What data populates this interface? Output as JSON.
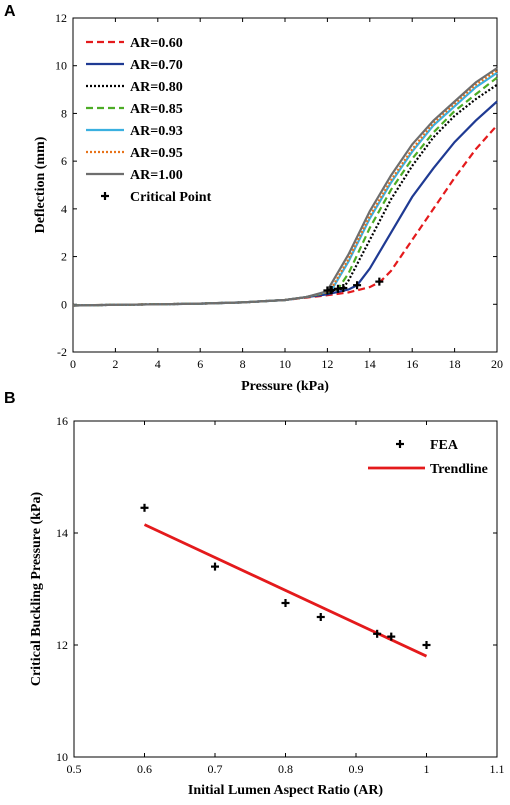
{
  "chart_data": [
    {
      "panel": "A",
      "type": "line",
      "xlabel": "Pressure (kPa)",
      "ylabel": "Deflection (mm)",
      "xlim": [
        0,
        20
      ],
      "ylim": [
        -2,
        12
      ],
      "xticks": [
        0,
        2,
        4,
        6,
        8,
        10,
        12,
        14,
        16,
        18,
        20
      ],
      "yticks": [
        -2,
        0,
        2,
        4,
        6,
        8,
        10,
        12
      ],
      "legend_position": "top-left",
      "series": [
        {
          "name": "AR=0.60",
          "color": "#e41a1c",
          "dash": "dashed",
          "x": [
            0,
            2,
            4,
            6,
            8,
            10,
            11,
            12,
            13,
            14,
            14.5,
            15,
            16,
            17,
            18,
            19,
            20
          ],
          "y": [
            -0.05,
            -0.02,
            0.0,
            0.03,
            0.08,
            0.18,
            0.28,
            0.38,
            0.5,
            0.72,
            0.95,
            1.4,
            2.7,
            4.0,
            5.3,
            6.5,
            7.5
          ]
        },
        {
          "name": "AR=0.70",
          "color": "#1f3a93",
          "dash": "solid",
          "x": [
            0,
            2,
            4,
            6,
            8,
            10,
            11,
            12,
            13,
            13.4,
            14,
            15,
            16,
            17,
            18,
            19,
            20
          ],
          "y": [
            -0.05,
            -0.02,
            0.0,
            0.03,
            0.08,
            0.18,
            0.3,
            0.42,
            0.62,
            0.8,
            1.5,
            3.0,
            4.5,
            5.7,
            6.8,
            7.7,
            8.5
          ]
        },
        {
          "name": "AR=0.80",
          "color": "#000000",
          "dash": "dotted",
          "x": [
            0,
            2,
            4,
            6,
            8,
            10,
            11,
            12,
            12.75,
            13,
            14,
            15,
            16,
            17,
            18,
            19,
            20
          ],
          "y": [
            -0.05,
            -0.02,
            0.0,
            0.03,
            0.08,
            0.18,
            0.3,
            0.5,
            0.68,
            1.0,
            2.7,
            4.4,
            5.8,
            7.0,
            7.9,
            8.6,
            9.2
          ]
        },
        {
          "name": "AR=0.85",
          "color": "#4dac26",
          "dash": "dashed",
          "x": [
            0,
            2,
            4,
            6,
            8,
            10,
            11,
            12,
            12.5,
            13,
            14,
            15,
            16,
            17,
            18,
            19,
            20
          ],
          "y": [
            -0.05,
            -0.02,
            0.0,
            0.03,
            0.08,
            0.18,
            0.3,
            0.5,
            0.65,
            1.3,
            3.2,
            4.8,
            6.1,
            7.2,
            8.1,
            8.8,
            9.5
          ]
        },
        {
          "name": "AR=0.93",
          "color": "#3ab0e0",
          "dash": "solid",
          "x": [
            0,
            2,
            4,
            6,
            8,
            10,
            11,
            12,
            12.2,
            13,
            14,
            15,
            16,
            17,
            18,
            19,
            20
          ],
          "y": [
            -0.05,
            -0.02,
            0.0,
            0.03,
            0.08,
            0.18,
            0.3,
            0.52,
            0.6,
            1.8,
            3.6,
            5.1,
            6.4,
            7.5,
            8.3,
            9.1,
            9.7
          ]
        },
        {
          "name": "AR=0.95",
          "color": "#e8731a",
          "dash": "dotted",
          "x": [
            0,
            2,
            4,
            6,
            8,
            10,
            11,
            12,
            12.15,
            13,
            14,
            15,
            16,
            17,
            18,
            19,
            20
          ],
          "y": [
            -0.05,
            -0.02,
            0.0,
            0.03,
            0.08,
            0.18,
            0.3,
            0.52,
            0.6,
            1.9,
            3.7,
            5.2,
            6.5,
            7.6,
            8.4,
            9.2,
            9.8
          ]
        },
        {
          "name": "AR=1.00",
          "color": "#6e6e6e",
          "dash": "solid",
          "x": [
            0,
            2,
            4,
            6,
            8,
            10,
            11,
            12,
            12.0,
            13,
            14,
            15,
            16,
            17,
            18,
            19,
            20
          ],
          "y": [
            -0.05,
            -0.02,
            0.0,
            0.03,
            0.08,
            0.18,
            0.3,
            0.55,
            0.58,
            2.1,
            3.9,
            5.4,
            6.7,
            7.7,
            8.5,
            9.3,
            9.9
          ]
        }
      ],
      "critical_points": {
        "name": "Critical Point",
        "x": [
          14.45,
          13.4,
          12.75,
          12.5,
          12.2,
          12.15,
          12.0
        ],
        "y": [
          0.95,
          0.8,
          0.68,
          0.65,
          0.6,
          0.6,
          0.58
        ]
      }
    },
    {
      "panel": "B",
      "type": "scatter",
      "xlabel": "Initial Lumen Aspect Ratio (AR)",
      "ylabel": "Critical Buckling Pressure (kPa)",
      "xlim": [
        0.5,
        1.1
      ],
      "ylim": [
        10,
        16
      ],
      "xticks": [
        "0.5",
        "0.6",
        "0.7",
        "0.8",
        "0.9",
        "1",
        "1.1"
      ],
      "yticks": [
        "10",
        "12",
        "14",
        "16"
      ],
      "legend_position": "top-right",
      "fea": {
        "name": "FEA",
        "x": [
          0.6,
          0.7,
          0.8,
          0.85,
          0.93,
          0.95,
          1.0
        ],
        "y": [
          14.45,
          13.4,
          12.75,
          12.5,
          12.2,
          12.15,
          12.0
        ]
      },
      "trendline": {
        "name": "Trendline",
        "color": "#e41a1c",
        "x": [
          0.6,
          1.0
        ],
        "y": [
          14.15,
          11.8
        ]
      }
    }
  ]
}
